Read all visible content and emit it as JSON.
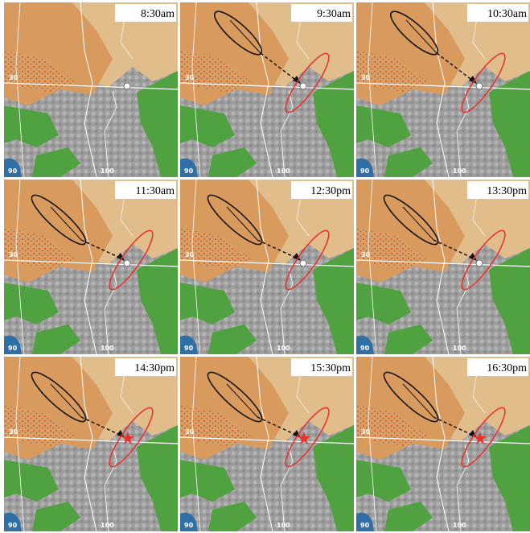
{
  "panels": [
    {
      "time": "8:30am",
      "lat_label": "30",
      "lon_labels": [
        "90",
        "100"
      ]
    },
    {
      "time": "9:30am",
      "lat_label": "30",
      "lon_labels": [
        "90",
        "100"
      ]
    },
    {
      "time": "10:30am",
      "lat_label": "30",
      "lon_labels": [
        "90",
        "100"
      ]
    },
    {
      "time": "11:30am",
      "lat_label": "30",
      "lon_labels": [
        "90",
        "100"
      ]
    },
    {
      "time": "12:30pm",
      "lat_label": "30",
      "lon_labels": [
        "90",
        "100"
      ]
    },
    {
      "time": "13:30pm",
      "lat_label": "30",
      "lon_labels": [
        "90",
        "100"
      ]
    },
    {
      "time": "14:30pm",
      "lat_label": "30",
      "lon_labels": [
        "90",
        "100"
      ]
    },
    {
      "time": "15:30pm",
      "lat_label": "30",
      "lon_labels": [
        "90",
        "100"
      ]
    },
    {
      "time": "16:30pm",
      "lat_label": "30",
      "lon_labels": [
        "90",
        "100"
      ]
    }
  ]
}
